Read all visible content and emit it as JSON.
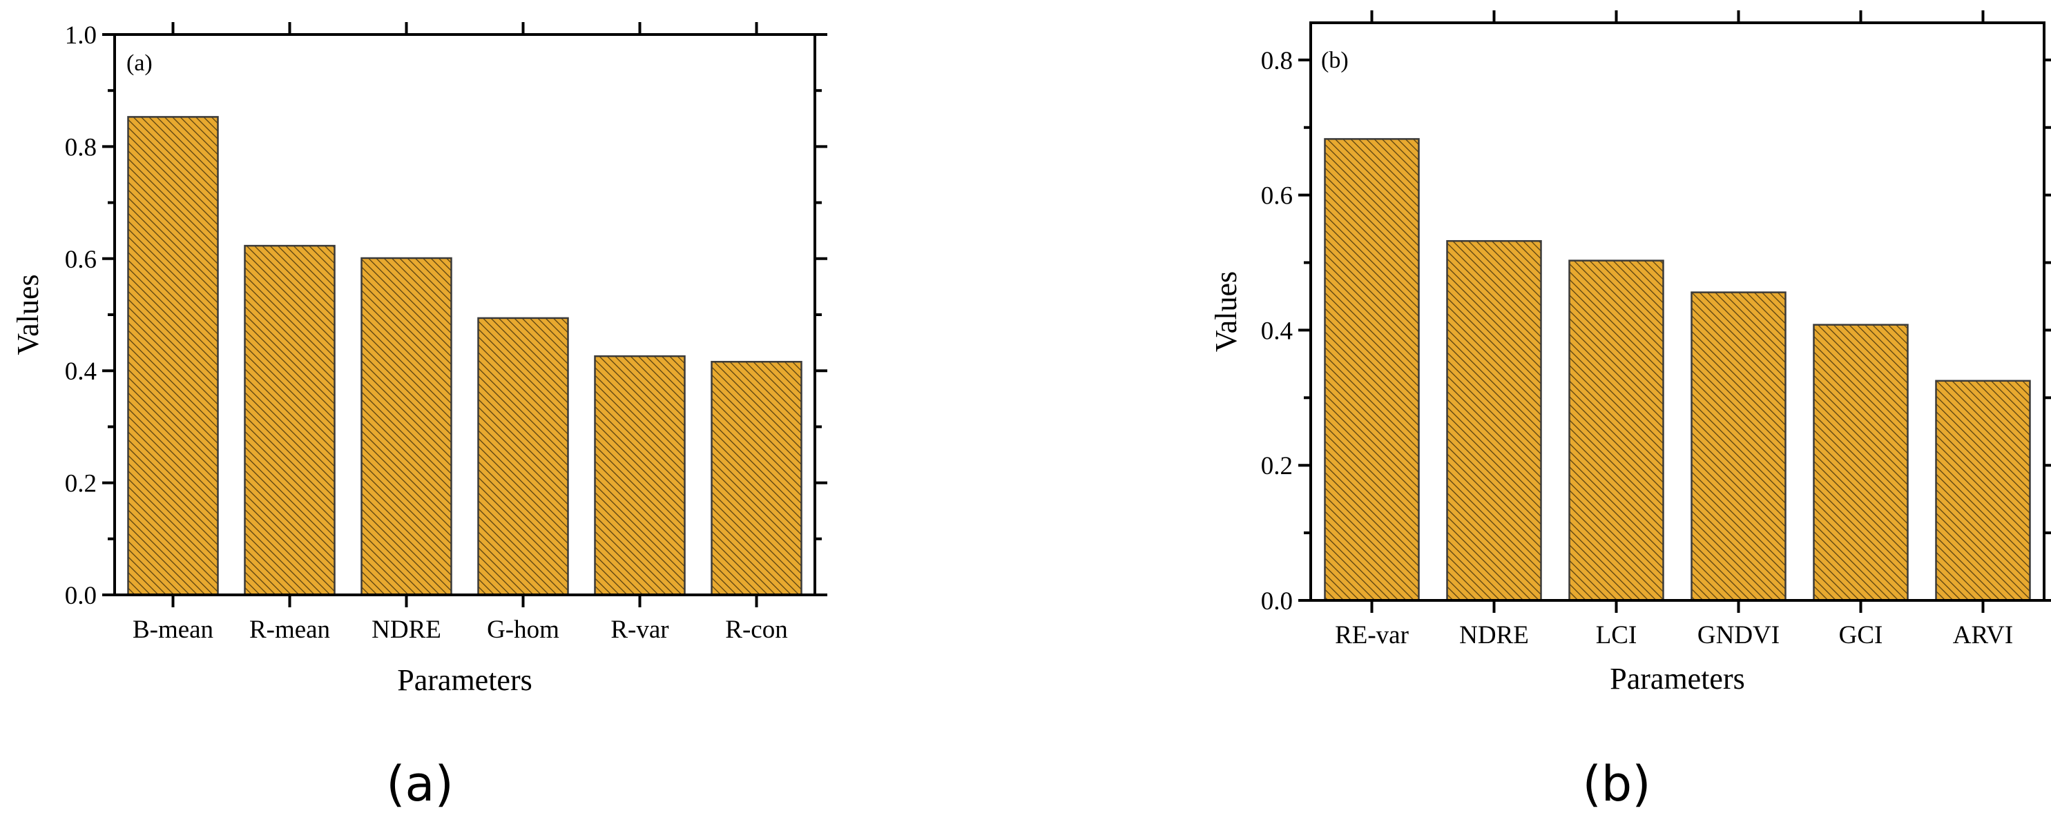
{
  "colors": {
    "bar_fill": "#e8a92f",
    "hatch": "#5a4210",
    "bar_edge": "#3a3a3a",
    "axis": "#000000"
  },
  "chart_data": [
    {
      "type": "bar",
      "panel_label": "(a)",
      "caption": "(a)",
      "xlabel": "Parameters",
      "ylabel": "Values",
      "categories": [
        "B-mean",
        "R-mean",
        "NDRE",
        "G-hom",
        "R-var",
        "R-con"
      ],
      "values": [
        0.853,
        0.623,
        0.601,
        0.494,
        0.426,
        0.416
      ],
      "ylim": [
        0,
        1.0
      ],
      "yticks": [
        0.0,
        0.2,
        0.4,
        0.6,
        0.8,
        1.0
      ],
      "ytick_labels": [
        "0.0",
        "0.2",
        "0.4",
        "0.6",
        "0.8",
        "1.0"
      ],
      "hatch": "diagonal",
      "grid": false
    },
    {
      "type": "bar",
      "panel_label": "(b)",
      "caption": "(b)",
      "xlabel": "Parameters",
      "ylabel": "Values",
      "categories": [
        "RE-var",
        "NDRE",
        "LCI",
        "GNDVI",
        "GCI",
        "ARVI"
      ],
      "values": [
        0.683,
        0.532,
        0.503,
        0.456,
        0.408,
        0.325
      ],
      "ylim": [
        0,
        0.855
      ],
      "yticks": [
        0.0,
        0.2,
        0.4,
        0.6,
        0.8
      ],
      "ytick_labels": [
        "0.0",
        "0.2",
        "0.4",
        "0.6",
        "0.8"
      ],
      "hatch": "diagonal",
      "grid": false
    }
  ]
}
